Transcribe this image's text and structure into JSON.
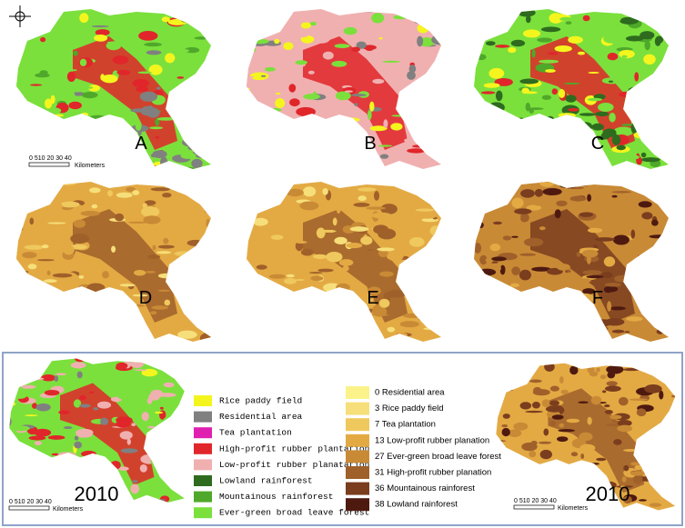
{
  "panels": [
    {
      "label": "A"
    },
    {
      "label": "B"
    },
    {
      "label": "C"
    },
    {
      "label": "D"
    },
    {
      "label": "E"
    },
    {
      "label": "F"
    }
  ],
  "year_label": "2010",
  "scale_bar": {
    "ticks": "0 510 20 30 40",
    "unit": "Kilometers"
  },
  "legend_land_use": [
    {
      "label": "Rice paddy field",
      "color": "#f5f51e"
    },
    {
      "label": "Residential area",
      "color": "#808080"
    },
    {
      "label": "Tea plantation",
      "color": "#e020b0"
    },
    {
      "label": "High-profit rubber plantation",
      "color": "#e0262a"
    },
    {
      "label": "Low-profit rubber planatation",
      "color": "#f0b0b0"
    },
    {
      "label": "Lowland rainforest",
      "color": "#2e6b1e"
    },
    {
      "label": "Mountainous rainforest",
      "color": "#4fa82a"
    },
    {
      "label": "Ever-green broad leave forest",
      "color": "#7be03c"
    }
  ],
  "legend_carbon": [
    {
      "label": "0 Residential area",
      "color": "#fbf38a"
    },
    {
      "label": "3 Rice paddy field",
      "color": "#f6df7a"
    },
    {
      "label": "7 Tea plantation",
      "color": "#efc85e"
    },
    {
      "label": "13 Low-profit rubber planation",
      "color": "#e3aa44"
    },
    {
      "label": "27 Ever-green broad leave forest",
      "color": "#c98a36"
    },
    {
      "label": "31 High-profit rubber planation",
      "color": "#a0602a"
    },
    {
      "label": "36 Mountainous rainforest",
      "color": "#7a3d1e"
    },
    {
      "label": "38 Lowland rainforest",
      "color": "#4e1a10"
    }
  ]
}
